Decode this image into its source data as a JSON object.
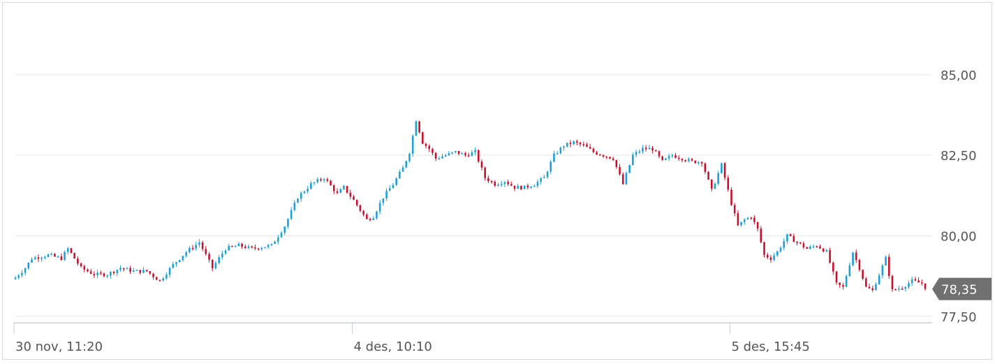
{
  "chart_data": {
    "type": "candlestick",
    "y_tick_labels": [
      "85,00",
      "82,50",
      "80,00",
      "77,50"
    ],
    "y_ticks": [
      85,
      82.5,
      80,
      77.5
    ],
    "ylim": [
      77.3,
      87.1
    ],
    "x_tick_labels": [
      "30 nov, 11:20",
      "4 des, 10:10",
      "5 des, 15:45"
    ],
    "x_tick_index": [
      0,
      103,
      218
    ],
    "grid": true,
    "last_price_label": "78,35",
    "last_price": 78.35,
    "colors": {
      "up": "#1e9fd6",
      "down": "#c8102e",
      "grid": "#e6e6e6",
      "axis": "#c8cfdc",
      "badge": "#707070",
      "text": "#555555"
    },
    "anchors": [
      [
        0,
        78.7
      ],
      [
        3,
        79.0
      ],
      [
        5,
        79.3
      ],
      [
        10,
        79.4
      ],
      [
        14,
        79.3
      ],
      [
        16,
        79.6
      ],
      [
        20,
        79.0
      ],
      [
        24,
        78.8
      ],
      [
        28,
        78.8
      ],
      [
        32,
        79.0
      ],
      [
        36,
        78.9
      ],
      [
        40,
        78.9
      ],
      [
        44,
        78.6
      ],
      [
        48,
        79.1
      ],
      [
        52,
        79.5
      ],
      [
        56,
        79.8
      ],
      [
        60,
        79.0
      ],
      [
        64,
        79.6
      ],
      [
        68,
        79.7
      ],
      [
        72,
        79.6
      ],
      [
        78,
        79.7
      ],
      [
        82,
        80.3
      ],
      [
        86,
        81.2
      ],
      [
        90,
        81.6
      ],
      [
        94,
        81.8
      ],
      [
        98,
        81.3
      ],
      [
        100,
        81.5
      ],
      [
        103,
        81.1
      ],
      [
        105,
        80.8
      ],
      [
        107,
        80.5
      ],
      [
        109,
        80.6
      ],
      [
        112,
        81.2
      ],
      [
        115,
        81.6
      ],
      [
        118,
        82.1
      ],
      [
        120,
        82.6
      ],
      [
        122,
        83.6
      ],
      [
        124,
        82.9
      ],
      [
        126,
        82.7
      ],
      [
        128,
        82.4
      ],
      [
        131,
        82.5
      ],
      [
        134,
        82.6
      ],
      [
        137,
        82.5
      ],
      [
        140,
        82.6
      ],
      [
        143,
        81.8
      ],
      [
        146,
        81.6
      ],
      [
        149,
        81.7
      ],
      [
        152,
        81.5
      ],
      [
        155,
        81.5
      ],
      [
        158,
        81.6
      ],
      [
        161,
        81.8
      ],
      [
        164,
        82.5
      ],
      [
        167,
        82.8
      ],
      [
        170,
        82.9
      ],
      [
        173,
        82.8
      ],
      [
        176,
        82.6
      ],
      [
        179,
        82.5
      ],
      [
        182,
        82.4
      ],
      [
        185,
        81.6
      ],
      [
        188,
        82.5
      ],
      [
        191,
        82.7
      ],
      [
        194,
        82.7
      ],
      [
        197,
        82.3
      ],
      [
        200,
        82.5
      ],
      [
        203,
        82.4
      ],
      [
        206,
        82.3
      ],
      [
        209,
        82.3
      ],
      [
        212,
        81.4
      ],
      [
        215,
        82.2
      ],
      [
        218,
        81.0
      ],
      [
        220,
        80.3
      ],
      [
        222,
        80.5
      ],
      [
        224,
        80.6
      ],
      [
        226,
        80.2
      ],
      [
        228,
        79.4
      ],
      [
        230,
        79.3
      ],
      [
        232,
        79.5
      ],
      [
        235,
        80.0
      ],
      [
        238,
        79.8
      ],
      [
        241,
        79.6
      ],
      [
        244,
        79.7
      ],
      [
        247,
        79.5
      ],
      [
        250,
        78.5
      ],
      [
        252,
        78.4
      ],
      [
        255,
        79.5
      ],
      [
        257,
        79.0
      ],
      [
        259,
        78.4
      ],
      [
        261,
        78.3
      ],
      [
        263,
        78.8
      ],
      [
        265,
        79.3
      ],
      [
        267,
        78.3
      ],
      [
        270,
        78.4
      ],
      [
        273,
        78.6
      ],
      [
        277,
        78.5
      ]
    ]
  }
}
